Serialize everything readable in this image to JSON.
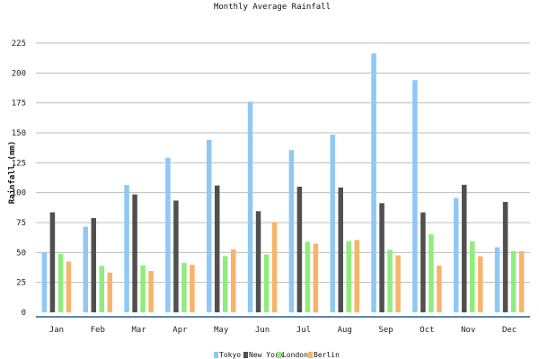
{
  "chart_data": {
    "type": "bar",
    "title": "Monthly Average Rainfall",
    "ylabel": "Rainfall (mm)",
    "xlabel": "",
    "categories": [
      "Jan",
      "Feb",
      "Mar",
      "Apr",
      "May",
      "Jun",
      "Jul",
      "Aug",
      "Sep",
      "Oct",
      "Nov",
      "Dec"
    ],
    "ylim": [
      0,
      225
    ],
    "yticks": [
      0,
      25,
      50,
      75,
      100,
      125,
      150,
      175,
      200,
      225
    ],
    "grid": true,
    "legend_position": "bottom",
    "series": [
      {
        "name": "Tokyo",
        "color": "#90c8f4",
        "values": [
          49.9,
          71.5,
          106.4,
          129.2,
          144.0,
          176.0,
          135.6,
          148.5,
          216.4,
          194.1,
          95.6,
          54.4
        ]
      },
      {
        "name": "New York",
        "color": "#505050",
        "values": [
          83.6,
          78.8,
          98.5,
          93.4,
          106.0,
          84.5,
          105.0,
          104.3,
          91.2,
          83.5,
          106.6,
          92.3
        ]
      },
      {
        "name": "London",
        "color": "#90ed7d",
        "values": [
          48.9,
          38.8,
          39.3,
          41.4,
          47.0,
          48.3,
          59.0,
          59.6,
          52.4,
          65.2,
          59.3,
          51.2
        ]
      },
      {
        "name": "Berlin",
        "color": "#f7b46b",
        "values": [
          42.4,
          33.2,
          34.5,
          39.7,
          52.6,
          75.5,
          57.4,
          60.4,
          47.6,
          39.1,
          46.8,
          51.1
        ]
      }
    ]
  }
}
